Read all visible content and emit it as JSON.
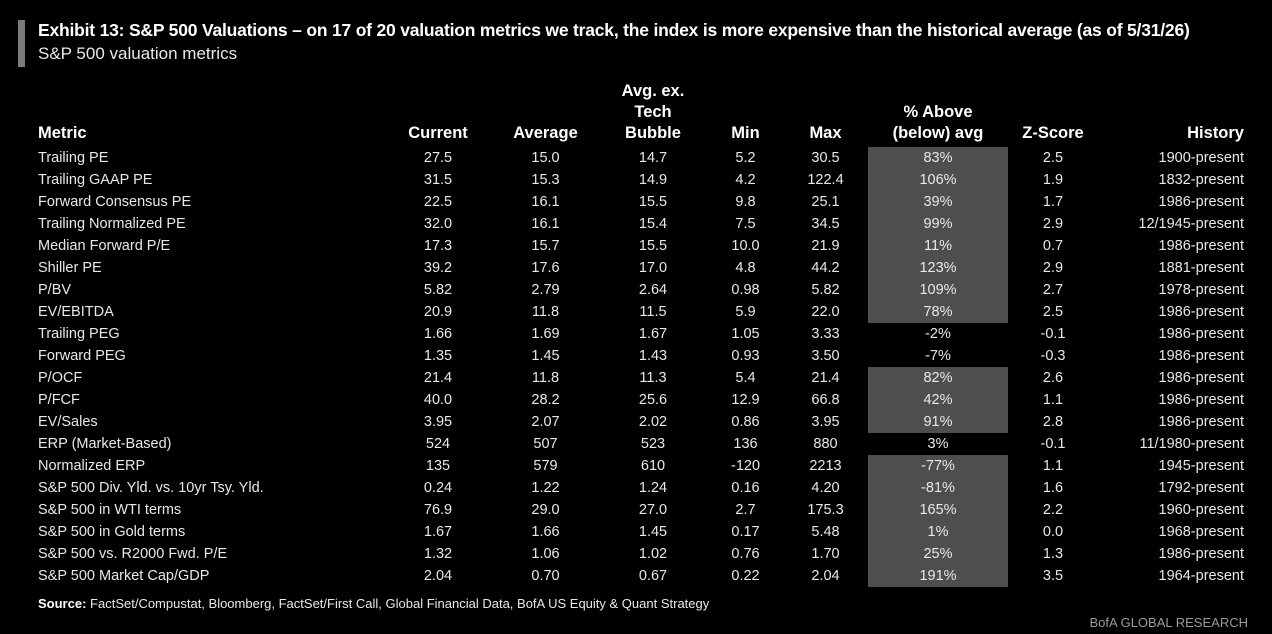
{
  "title": "Exhibit 13: S&P 500 Valuations – on 17 of 20 valuation metrics we track, the index is more expensive than the historical average (as of 5/31/26)",
  "subtitle": "S&P 500 valuation metrics",
  "source_label": "Source:",
  "source_text": "FactSet/Compustat, Bloomberg, FactSet/First Call, Global Financial Data, BofA US Equity & Quant Strategy",
  "brand": "BofA GLOBAL RESEARCH",
  "highlight_color": "#4e4e4e",
  "chart_data": {
    "type": "table",
    "columns": [
      "Metric",
      "Current",
      "Average",
      "Avg. ex. Tech Bubble",
      "Min",
      "Max",
      "% Above (below) avg",
      "Z-Score",
      "History"
    ],
    "rows": [
      {
        "metric": "Trailing PE",
        "current": "27.5",
        "average": "15.0",
        "avg_ex": "14.7",
        "min": "5.2",
        "max": "30.5",
        "pct": "83%",
        "z": "2.5",
        "history": "1900-present",
        "highlight": true
      },
      {
        "metric": "Trailing GAAP PE",
        "current": "31.5",
        "average": "15.3",
        "avg_ex": "14.9",
        "min": "4.2",
        "max": "122.4",
        "pct": "106%",
        "z": "1.9",
        "history": "1832-present",
        "highlight": true
      },
      {
        "metric": "Forward Consensus PE",
        "current": "22.5",
        "average": "16.1",
        "avg_ex": "15.5",
        "min": "9.8",
        "max": "25.1",
        "pct": "39%",
        "z": "1.7",
        "history": "1986-present",
        "highlight": true
      },
      {
        "metric": "Trailing Normalized PE",
        "current": "32.0",
        "average": "16.1",
        "avg_ex": "15.4",
        "min": "7.5",
        "max": "34.5",
        "pct": "99%",
        "z": "2.9",
        "history": "12/1945-present",
        "highlight": true
      },
      {
        "metric": "Median Forward P/E",
        "current": "17.3",
        "average": "15.7",
        "avg_ex": "15.5",
        "min": "10.0",
        "max": "21.9",
        "pct": "11%",
        "z": "0.7",
        "history": "1986-present",
        "highlight": true
      },
      {
        "metric": "Shiller PE",
        "current": "39.2",
        "average": "17.6",
        "avg_ex": "17.0",
        "min": "4.8",
        "max": "44.2",
        "pct": "123%",
        "z": "2.9",
        "history": "1881-present",
        "highlight": true
      },
      {
        "metric": "P/BV",
        "current": "5.82",
        "average": "2.79",
        "avg_ex": "2.64",
        "min": "0.98",
        "max": "5.82",
        "pct": "109%",
        "z": "2.7",
        "history": "1978-present",
        "highlight": true
      },
      {
        "metric": "EV/EBITDA",
        "current": "20.9",
        "average": "11.8",
        "avg_ex": "11.5",
        "min": "5.9",
        "max": "22.0",
        "pct": "78%",
        "z": "2.5",
        "history": "1986-present",
        "highlight": true
      },
      {
        "metric": "Trailing PEG",
        "current": "1.66",
        "average": "1.69",
        "avg_ex": "1.67",
        "min": "1.05",
        "max": "3.33",
        "pct": "-2%",
        "z": "-0.1",
        "history": "1986-present",
        "highlight": false
      },
      {
        "metric": "Forward PEG",
        "current": "1.35",
        "average": "1.45",
        "avg_ex": "1.43",
        "min": "0.93",
        "max": "3.50",
        "pct": "-7%",
        "z": "-0.3",
        "history": "1986-present",
        "highlight": false
      },
      {
        "metric": "P/OCF",
        "current": "21.4",
        "average": "11.8",
        "avg_ex": "11.3",
        "min": "5.4",
        "max": "21.4",
        "pct": "82%",
        "z": "2.6",
        "history": "1986-present",
        "highlight": true
      },
      {
        "metric": "P/FCF",
        "current": "40.0",
        "average": "28.2",
        "avg_ex": "25.6",
        "min": "12.9",
        "max": "66.8",
        "pct": "42%",
        "z": "1.1",
        "history": "1986-present",
        "highlight": true
      },
      {
        "metric": "EV/Sales",
        "current": "3.95",
        "average": "2.07",
        "avg_ex": "2.02",
        "min": "0.86",
        "max": "3.95",
        "pct": "91%",
        "z": "2.8",
        "history": "1986-present",
        "highlight": true
      },
      {
        "metric": "ERP (Market-Based)",
        "current": "524",
        "average": "507",
        "avg_ex": "523",
        "min": "136",
        "max": "880",
        "pct": "3%",
        "z": "-0.1",
        "history": "11/1980-present",
        "highlight": false
      },
      {
        "metric": "Normalized ERP",
        "current": "135",
        "average": "579",
        "avg_ex": "610",
        "min": "-120",
        "max": "2213",
        "pct": "-77%",
        "z": "1.1",
        "history": "1945-present",
        "highlight": true
      },
      {
        "metric": "S&P 500 Div. Yld. vs. 10yr Tsy. Yld.",
        "current": "0.24",
        "average": "1.22",
        "avg_ex": "1.24",
        "min": "0.16",
        "max": "4.20",
        "pct": "-81%",
        "z": "1.6",
        "history": "1792-present",
        "highlight": true
      },
      {
        "metric": "S&P 500 in WTI terms",
        "current": "76.9",
        "average": "29.0",
        "avg_ex": "27.0",
        "min": "2.7",
        "max": "175.3",
        "pct": "165%",
        "z": "2.2",
        "history": "1960-present",
        "highlight": true
      },
      {
        "metric": "S&P 500 in Gold terms",
        "current": "1.67",
        "average": "1.66",
        "avg_ex": "1.45",
        "min": "0.17",
        "max": "5.48",
        "pct": "1%",
        "z": "0.0",
        "history": "1968-present",
        "highlight": true
      },
      {
        "metric": "S&P 500 vs. R2000 Fwd. P/E",
        "current": "1.32",
        "average": "1.06",
        "avg_ex": "1.02",
        "min": "0.76",
        "max": "1.70",
        "pct": "25%",
        "z": "1.3",
        "history": "1986-present",
        "highlight": true
      },
      {
        "metric": "S&P 500 Market Cap/GDP",
        "current": "2.04",
        "average": "0.70",
        "avg_ex": "0.67",
        "min": "0.22",
        "max": "2.04",
        "pct": "191%",
        "z": "3.5",
        "history": "1964-present",
        "highlight": true
      }
    ]
  }
}
